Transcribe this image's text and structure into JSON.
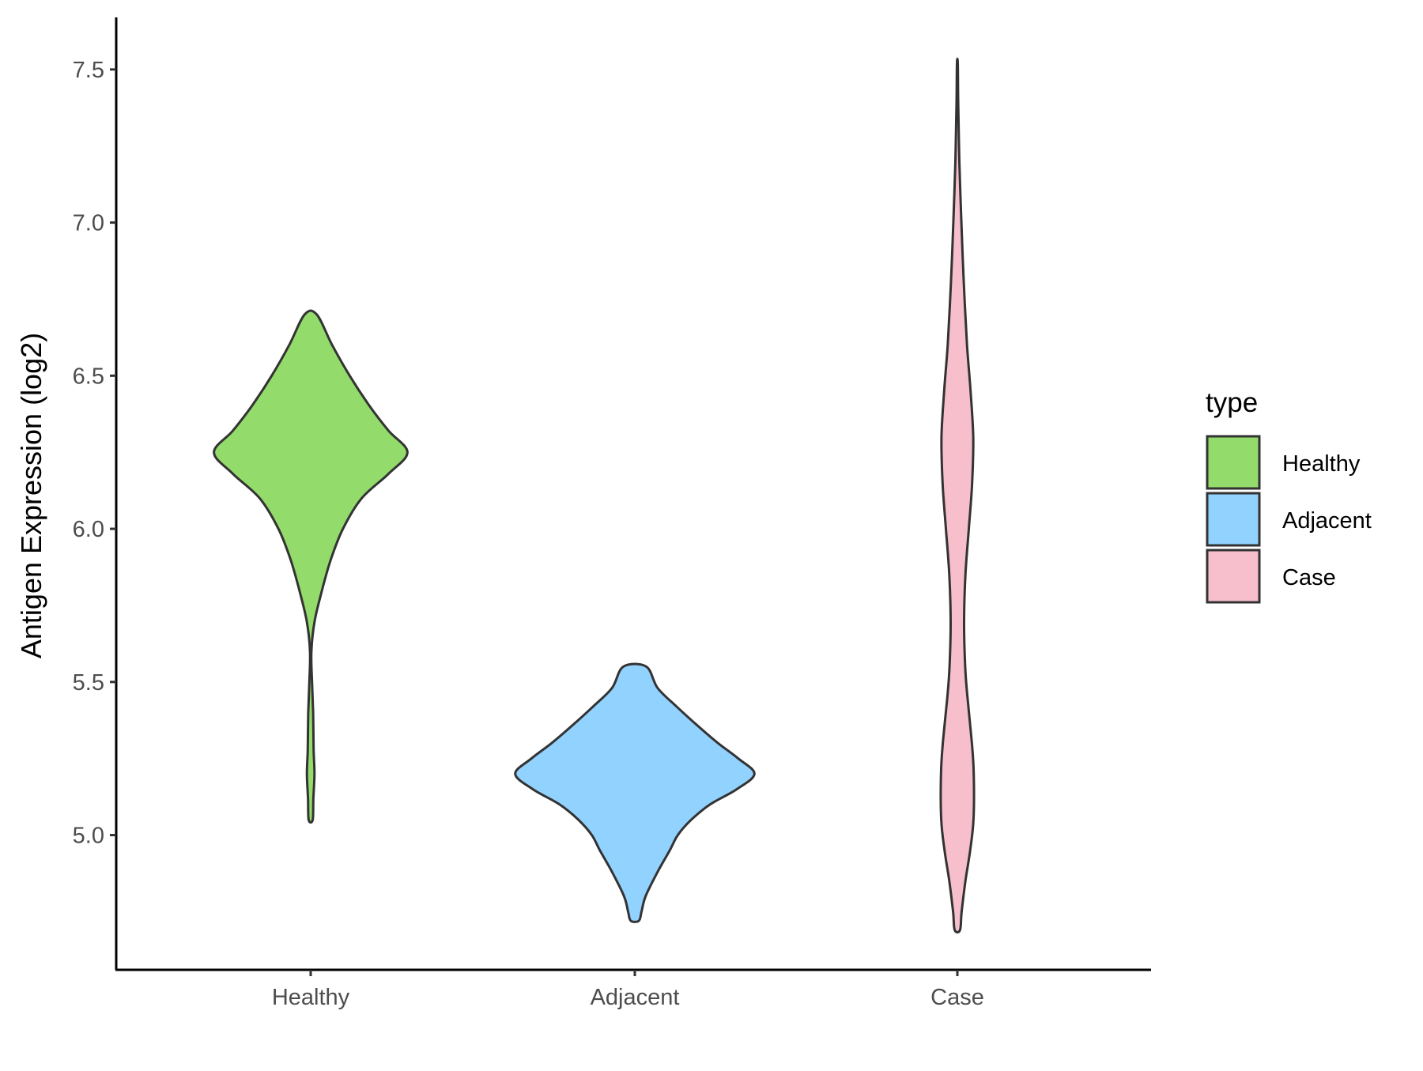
{
  "chart_data": {
    "type": "violin",
    "categories": [
      "Healthy",
      "Adjacent",
      "Case"
    ],
    "ylabel": "Antigen Expression (log2)",
    "xlabel": "",
    "ylim": [
      4.56,
      7.67
    ],
    "yticks": [
      "5.0",
      "5.5",
      "6.0",
      "6.5",
      "7.0",
      "7.5"
    ],
    "grid": false,
    "legend": {
      "title": "type",
      "position": "right",
      "entries": [
        "Healthy",
        "Adjacent",
        "Case"
      ]
    },
    "colors": {
      "Healthy": "#93DB6B",
      "Adjacent": "#92D2FF",
      "Case": "#F7BFCC",
      "outline": "#333333"
    },
    "series": [
      {
        "category": "Healthy",
        "min": 5.05,
        "max": 6.7,
        "profile": [
          [
            5.05,
            0.015
          ],
          [
            5.12,
            0.02
          ],
          [
            5.2,
            0.028
          ],
          [
            5.28,
            0.022
          ],
          [
            5.4,
            0.018
          ],
          [
            5.5,
            0.01
          ],
          [
            5.6,
            0.005
          ],
          [
            5.7,
            0.03
          ],
          [
            5.8,
            0.085
          ],
          [
            5.9,
            0.15
          ],
          [
            6.0,
            0.24
          ],
          [
            6.1,
            0.38
          ],
          [
            6.18,
            0.58
          ],
          [
            6.25,
            0.72
          ],
          [
            6.32,
            0.58
          ],
          [
            6.4,
            0.44
          ],
          [
            6.5,
            0.29
          ],
          [
            6.6,
            0.16
          ],
          [
            6.7,
            0.045
          ]
        ]
      },
      {
        "category": "Adjacent",
        "min": 4.72,
        "max": 5.55,
        "profile": [
          [
            4.72,
            0.03
          ],
          [
            4.75,
            0.05
          ],
          [
            4.8,
            0.08
          ],
          [
            4.88,
            0.17
          ],
          [
            4.95,
            0.26
          ],
          [
            5.0,
            0.32
          ],
          [
            5.05,
            0.42
          ],
          [
            5.1,
            0.56
          ],
          [
            5.15,
            0.76
          ],
          [
            5.2,
            0.89
          ],
          [
            5.25,
            0.77
          ],
          [
            5.3,
            0.62
          ],
          [
            5.36,
            0.46
          ],
          [
            5.42,
            0.31
          ],
          [
            5.48,
            0.17
          ],
          [
            5.55,
            0.085
          ]
        ]
      },
      {
        "category": "Case",
        "min": 4.69,
        "max": 7.52,
        "profile": [
          [
            4.69,
            0.02
          ],
          [
            4.75,
            0.032
          ],
          [
            4.85,
            0.06
          ],
          [
            4.95,
            0.095
          ],
          [
            5.05,
            0.12
          ],
          [
            5.2,
            0.122
          ],
          [
            5.3,
            0.108
          ],
          [
            5.45,
            0.075
          ],
          [
            5.55,
            0.058
          ],
          [
            5.7,
            0.05
          ],
          [
            5.85,
            0.06
          ],
          [
            6.0,
            0.085
          ],
          [
            6.15,
            0.11
          ],
          [
            6.3,
            0.118
          ],
          [
            6.45,
            0.098
          ],
          [
            6.6,
            0.072
          ],
          [
            6.8,
            0.048
          ],
          [
            7.0,
            0.03
          ],
          [
            7.2,
            0.015
          ],
          [
            7.4,
            0.006
          ],
          [
            7.52,
            0.003
          ]
        ]
      }
    ]
  }
}
